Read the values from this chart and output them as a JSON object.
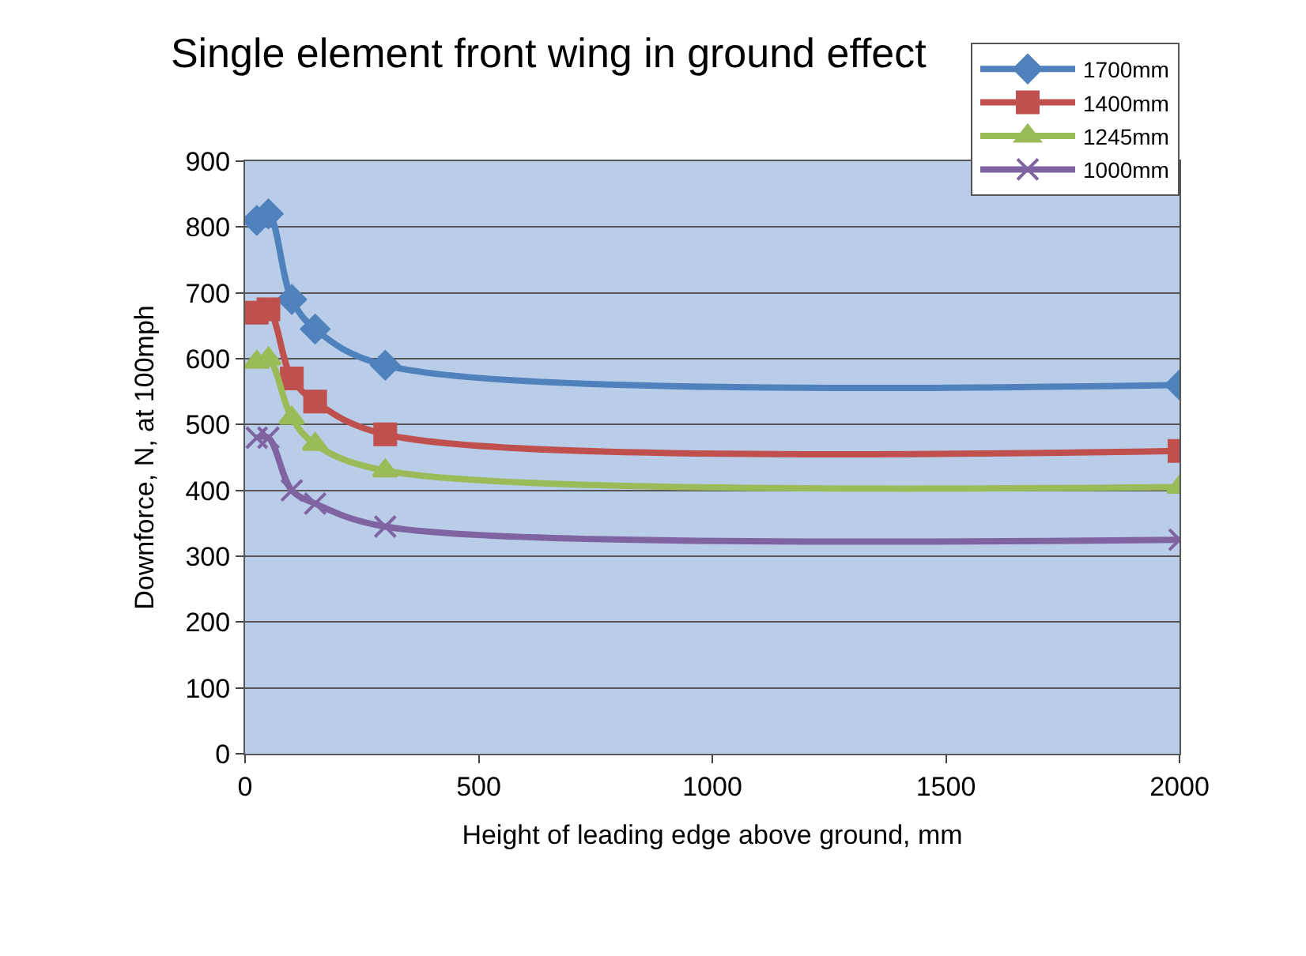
{
  "chart_data": {
    "type": "line",
    "title": "Single element front wing in ground effect",
    "xlabel": "Height of leading edge above ground, mm",
    "ylabel": "Downforce, N, at 100mph",
    "x": [
      25,
      50,
      100,
      150,
      300,
      2000
    ],
    "series": [
      {
        "name": "1700mm",
        "color": "#4f81bd",
        "marker": "diamond",
        "values": [
          810,
          820,
          690,
          645,
          590,
          560
        ]
      },
      {
        "name": "1400mm",
        "color": "#c0504d",
        "marker": "square",
        "values": [
          670,
          675,
          570,
          535,
          485,
          460
        ]
      },
      {
        "name": "1245mm",
        "color": "#9bbb59",
        "marker": "triangle",
        "values": [
          595,
          600,
          510,
          470,
          430,
          405
        ]
      },
      {
        "name": "1000mm",
        "color": "#8064a2",
        "marker": "cross",
        "values": [
          480,
          480,
          400,
          380,
          345,
          325
        ]
      }
    ],
    "xlim": [
      0,
      2000
    ],
    "xticks": [
      0,
      500,
      1000,
      1500,
      2000
    ],
    "ylim": [
      0,
      900
    ],
    "yticks": [
      0,
      100,
      200,
      300,
      400,
      500,
      600,
      700,
      800,
      900
    ],
    "grid": "y",
    "legend": "top right",
    "line_style": "solid"
  }
}
